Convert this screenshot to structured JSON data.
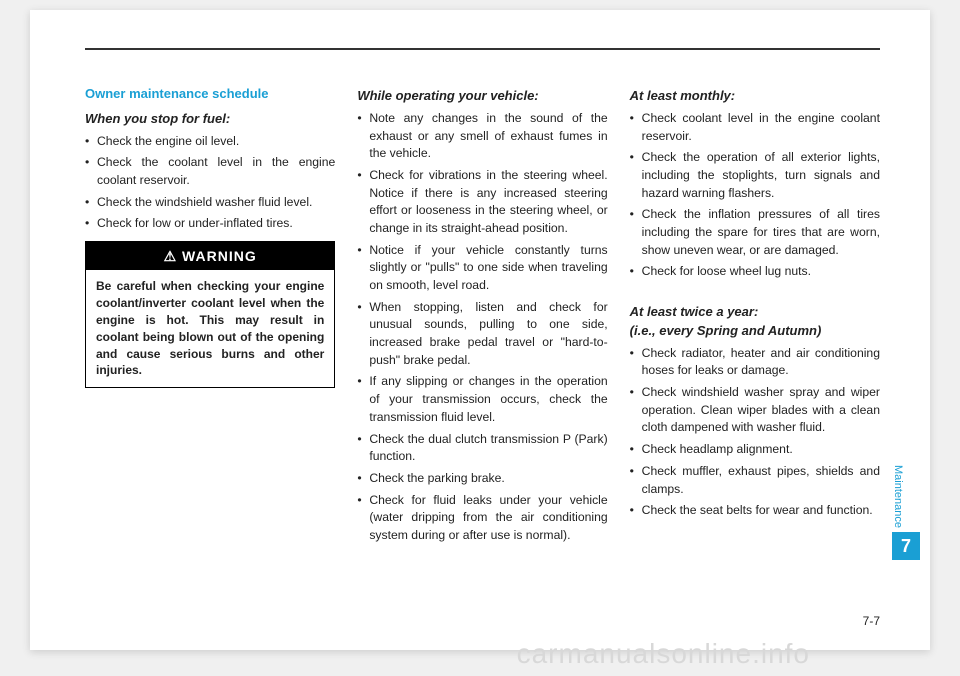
{
  "header": {
    "section_title": "Owner maintenance schedule"
  },
  "col1": {
    "sub1_title": "When you stop for fuel:",
    "sub1_items": [
      "Check the engine oil level.",
      "Check the coolant level in the engine coolant reservoir.",
      "Check the windshield washer fluid level.",
      "Check for low or under-inflated tires."
    ],
    "warning_label": "WARNING",
    "warning_text": "Be careful when checking your engine coolant/inverter coolant level when the engine is hot. This may result in coolant being blown out of the opening and cause serious burns and other injuries."
  },
  "col2": {
    "sub_title": "While operating your vehicle:",
    "items": [
      "Note any changes in the sound of the exhaust or any smell of exhaust fumes in the vehicle.",
      "Check for vibrations in the steering wheel. Notice if there is any increased steering effort or looseness in the steering wheel, or change in its straight-ahead position.",
      "Notice if your vehicle constantly turns slightly or \"pulls\" to one side when traveling on smooth, level road.",
      "When stopping, listen and check for unusual sounds, pulling to one side, increased brake pedal travel or \"hard-to-push\" brake pedal.",
      "If any slipping or changes in the operation of your transmission occurs, check the transmission fluid level.",
      "Check the dual clutch transmission P (Park) function.",
      "Check the parking brake.",
      "Check for fluid leaks under your vehicle (water dripping from the air conditioning system during or after use is normal)."
    ]
  },
  "col3": {
    "sub1_title": "At least monthly:",
    "sub1_items": [
      "Check coolant level in the engine coolant reservoir.",
      "Check the operation of all exterior lights, including the stoplights, turn signals and hazard warning flashers.",
      "Check the inflation pressures of all tires including the spare for tires that are worn, show uneven wear, or are damaged.",
      "Check for loose wheel lug nuts."
    ],
    "sub2_title": "At least twice a year:",
    "sub2_title2": "(i.e., every Spring and Autumn)",
    "sub2_items": [
      "Check radiator, heater and air conditioning hoses for leaks or damage.",
      "Check windshield washer spray and wiper operation. Clean wiper blades with a clean cloth dampened with washer fluid.",
      "Check headlamp alignment.",
      "Check muffler, exhaust pipes, shields and clamps.",
      "Check the seat belts for wear and function."
    ]
  },
  "sidebar": {
    "label": "Maintenance",
    "chapter": "7"
  },
  "footer": {
    "page_num": "7-7",
    "watermark": "carmanualsonline.info"
  }
}
